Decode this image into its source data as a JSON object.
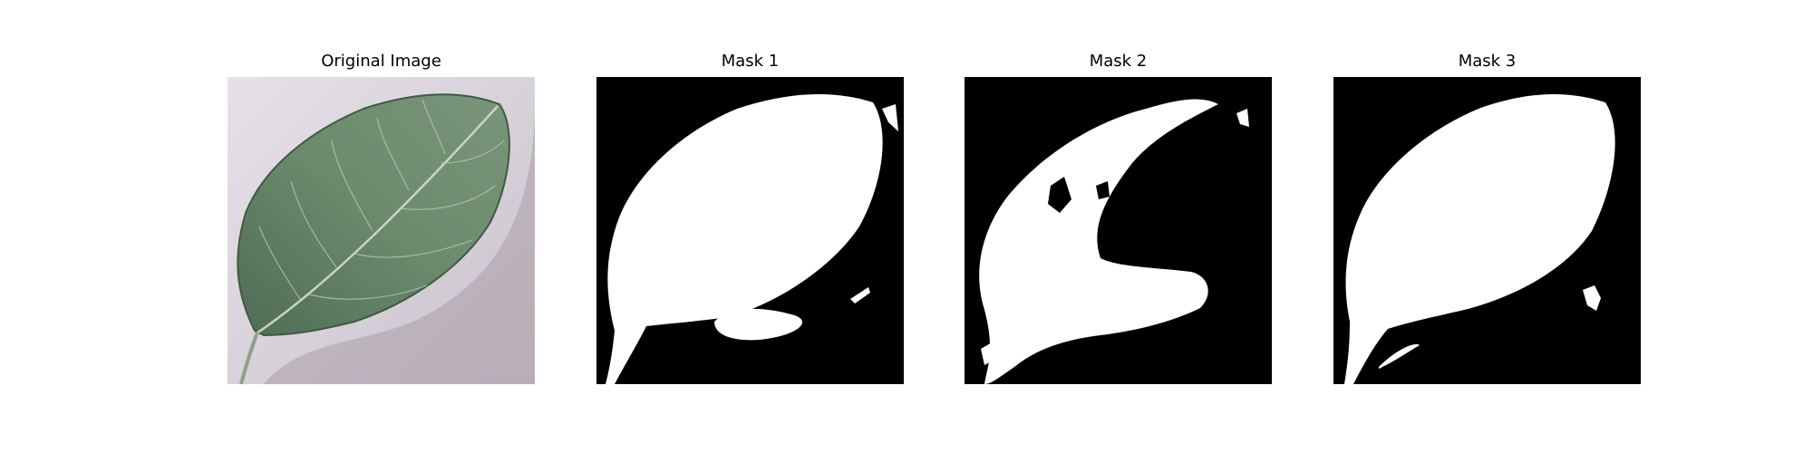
{
  "panels": [
    {
      "title": "Original Image"
    },
    {
      "title": "Mask 1"
    },
    {
      "title": "Mask 2"
    },
    {
      "title": "Mask 3"
    }
  ],
  "colors": {
    "background_photo": "#d9d3dc",
    "leaf_green": "#5f7c5f",
    "mask_fg": "#ffffff",
    "mask_bg": "#000000"
  }
}
